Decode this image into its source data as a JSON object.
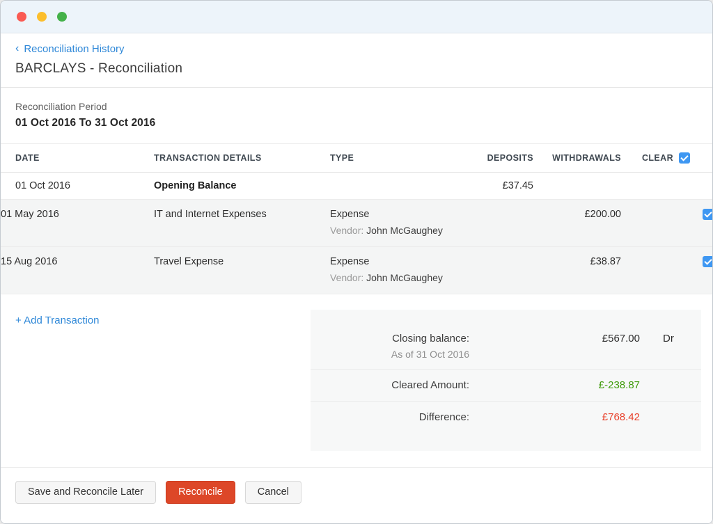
{
  "header": {
    "back_link": "Reconciliation History",
    "back_chevron": "‹",
    "title": "BARCLAYS - Reconciliation"
  },
  "period": {
    "label": "Reconciliation Period",
    "value": "01 Oct 2016 To 31 Oct 2016"
  },
  "table": {
    "headers": {
      "date": "DATE",
      "details": "TRANSACTION DETAILS",
      "type": "TYPE",
      "deposits": "DEPOSITS",
      "withdrawals": "WITHDRAWALS",
      "clear": "CLEAR"
    },
    "header_clear_checked": true,
    "rows": [
      {
        "date": "01 Oct 2016",
        "details": "Opening Balance",
        "deposits": "£37.45"
      },
      {
        "date": "01 May 2016",
        "details": "IT and Internet Expenses",
        "type": "Expense",
        "vendor_label": "Vendor:",
        "vendor": "John McGaughey",
        "withdrawals": "£200.00",
        "cleared": true
      },
      {
        "date": "15 Aug 2016",
        "details": "Travel Expense",
        "type": "Expense",
        "vendor_label": "Vendor:",
        "vendor": "John McGaughey",
        "withdrawals": "£38.87",
        "cleared": true
      }
    ]
  },
  "add_transaction_label": "+ Add Transaction",
  "summary": {
    "closing_balance_label": "Closing balance:",
    "closing_balance_sub": "As of 31 Oct 2016",
    "closing_balance_value": "£567.00",
    "closing_balance_suffix": "Dr",
    "cleared_label": "Cleared Amount:",
    "cleared_value": "£-238.87",
    "difference_label": "Difference:",
    "difference_value": "£768.42",
    "colors": {
      "cleared": "#3f9b0b",
      "difference": "#e8402a",
      "link_blue": "#2f88d8",
      "checkbox_blue": "#3e97f2",
      "primary_button": "#dd4728"
    }
  },
  "footer": {
    "save_later": "Save and Reconcile Later",
    "reconcile": "Reconcile",
    "cancel": "Cancel"
  }
}
